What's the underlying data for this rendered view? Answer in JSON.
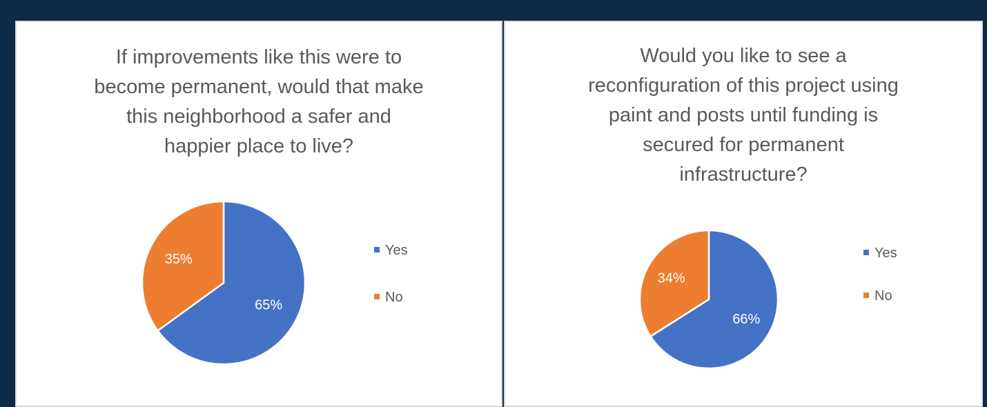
{
  "chart_data": [
    {
      "type": "pie",
      "title_lines": [
        "If improvements like this were to",
        "become permanent, would that make",
        "this neighborhood a safer and",
        "happier place to live?"
      ],
      "categories": [
        "Yes",
        "No"
      ],
      "values": [
        65,
        35
      ],
      "data_labels": [
        "65%",
        "35%"
      ],
      "colors": [
        "#4472c4",
        "#ed7d31"
      ],
      "legend": "right"
    },
    {
      "type": "pie",
      "title_lines": [
        "Would you like to see a",
        "reconfiguration of this project using",
        "paint and posts until funding is",
        "secured for permanent",
        "infrastructure?"
      ],
      "categories": [
        "Yes",
        "No"
      ],
      "values": [
        66,
        34
      ],
      "data_labels": [
        "66%",
        "34%"
      ],
      "colors": [
        "#4472c4",
        "#ed7d31"
      ],
      "legend": "right"
    }
  ]
}
